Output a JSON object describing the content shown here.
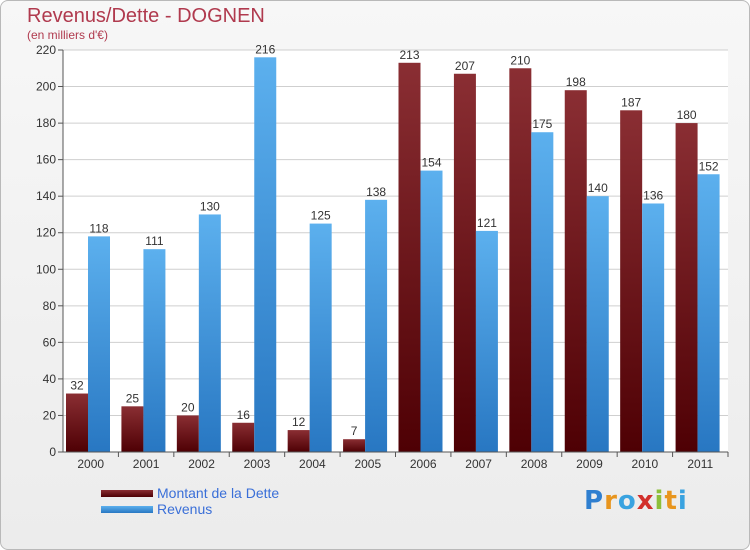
{
  "title": "Revenus/Dette - DOGNEN",
  "subtitle": "(en milliers d'€)",
  "chart_data": {
    "type": "bar",
    "title": "Revenus/Dette - DOGNEN",
    "subtitle": "(en milliers d'€)",
    "categories": [
      "2000",
      "2001",
      "2002",
      "2003",
      "2004",
      "2005",
      "2006",
      "2007",
      "2008",
      "2009",
      "2010",
      "2011"
    ],
    "series": [
      {
        "name": "Montant de la Dette",
        "color": "#6e0f15",
        "values": [
          32,
          25,
          20,
          16,
          12,
          7,
          213,
          207,
          210,
          198,
          187,
          180
        ]
      },
      {
        "name": "Revenus",
        "color": "#3e9be3",
        "values": [
          118,
          111,
          130,
          216,
          125,
          138,
          154,
          121,
          175,
          140,
          136,
          152
        ]
      }
    ],
    "ylim": [
      0,
      220
    ],
    "yticks": [
      0,
      20,
      40,
      60,
      80,
      100,
      120,
      140,
      160,
      180,
      200,
      220
    ],
    "grid": true,
    "legend_position": "bottom-left"
  },
  "legend": {
    "items": [
      {
        "label": "Montant de la Dette",
        "color": "#6e0f15"
      },
      {
        "label": "Revenus",
        "color": "#3e9be3"
      }
    ]
  },
  "logo": {
    "text": "Proxiti"
  }
}
